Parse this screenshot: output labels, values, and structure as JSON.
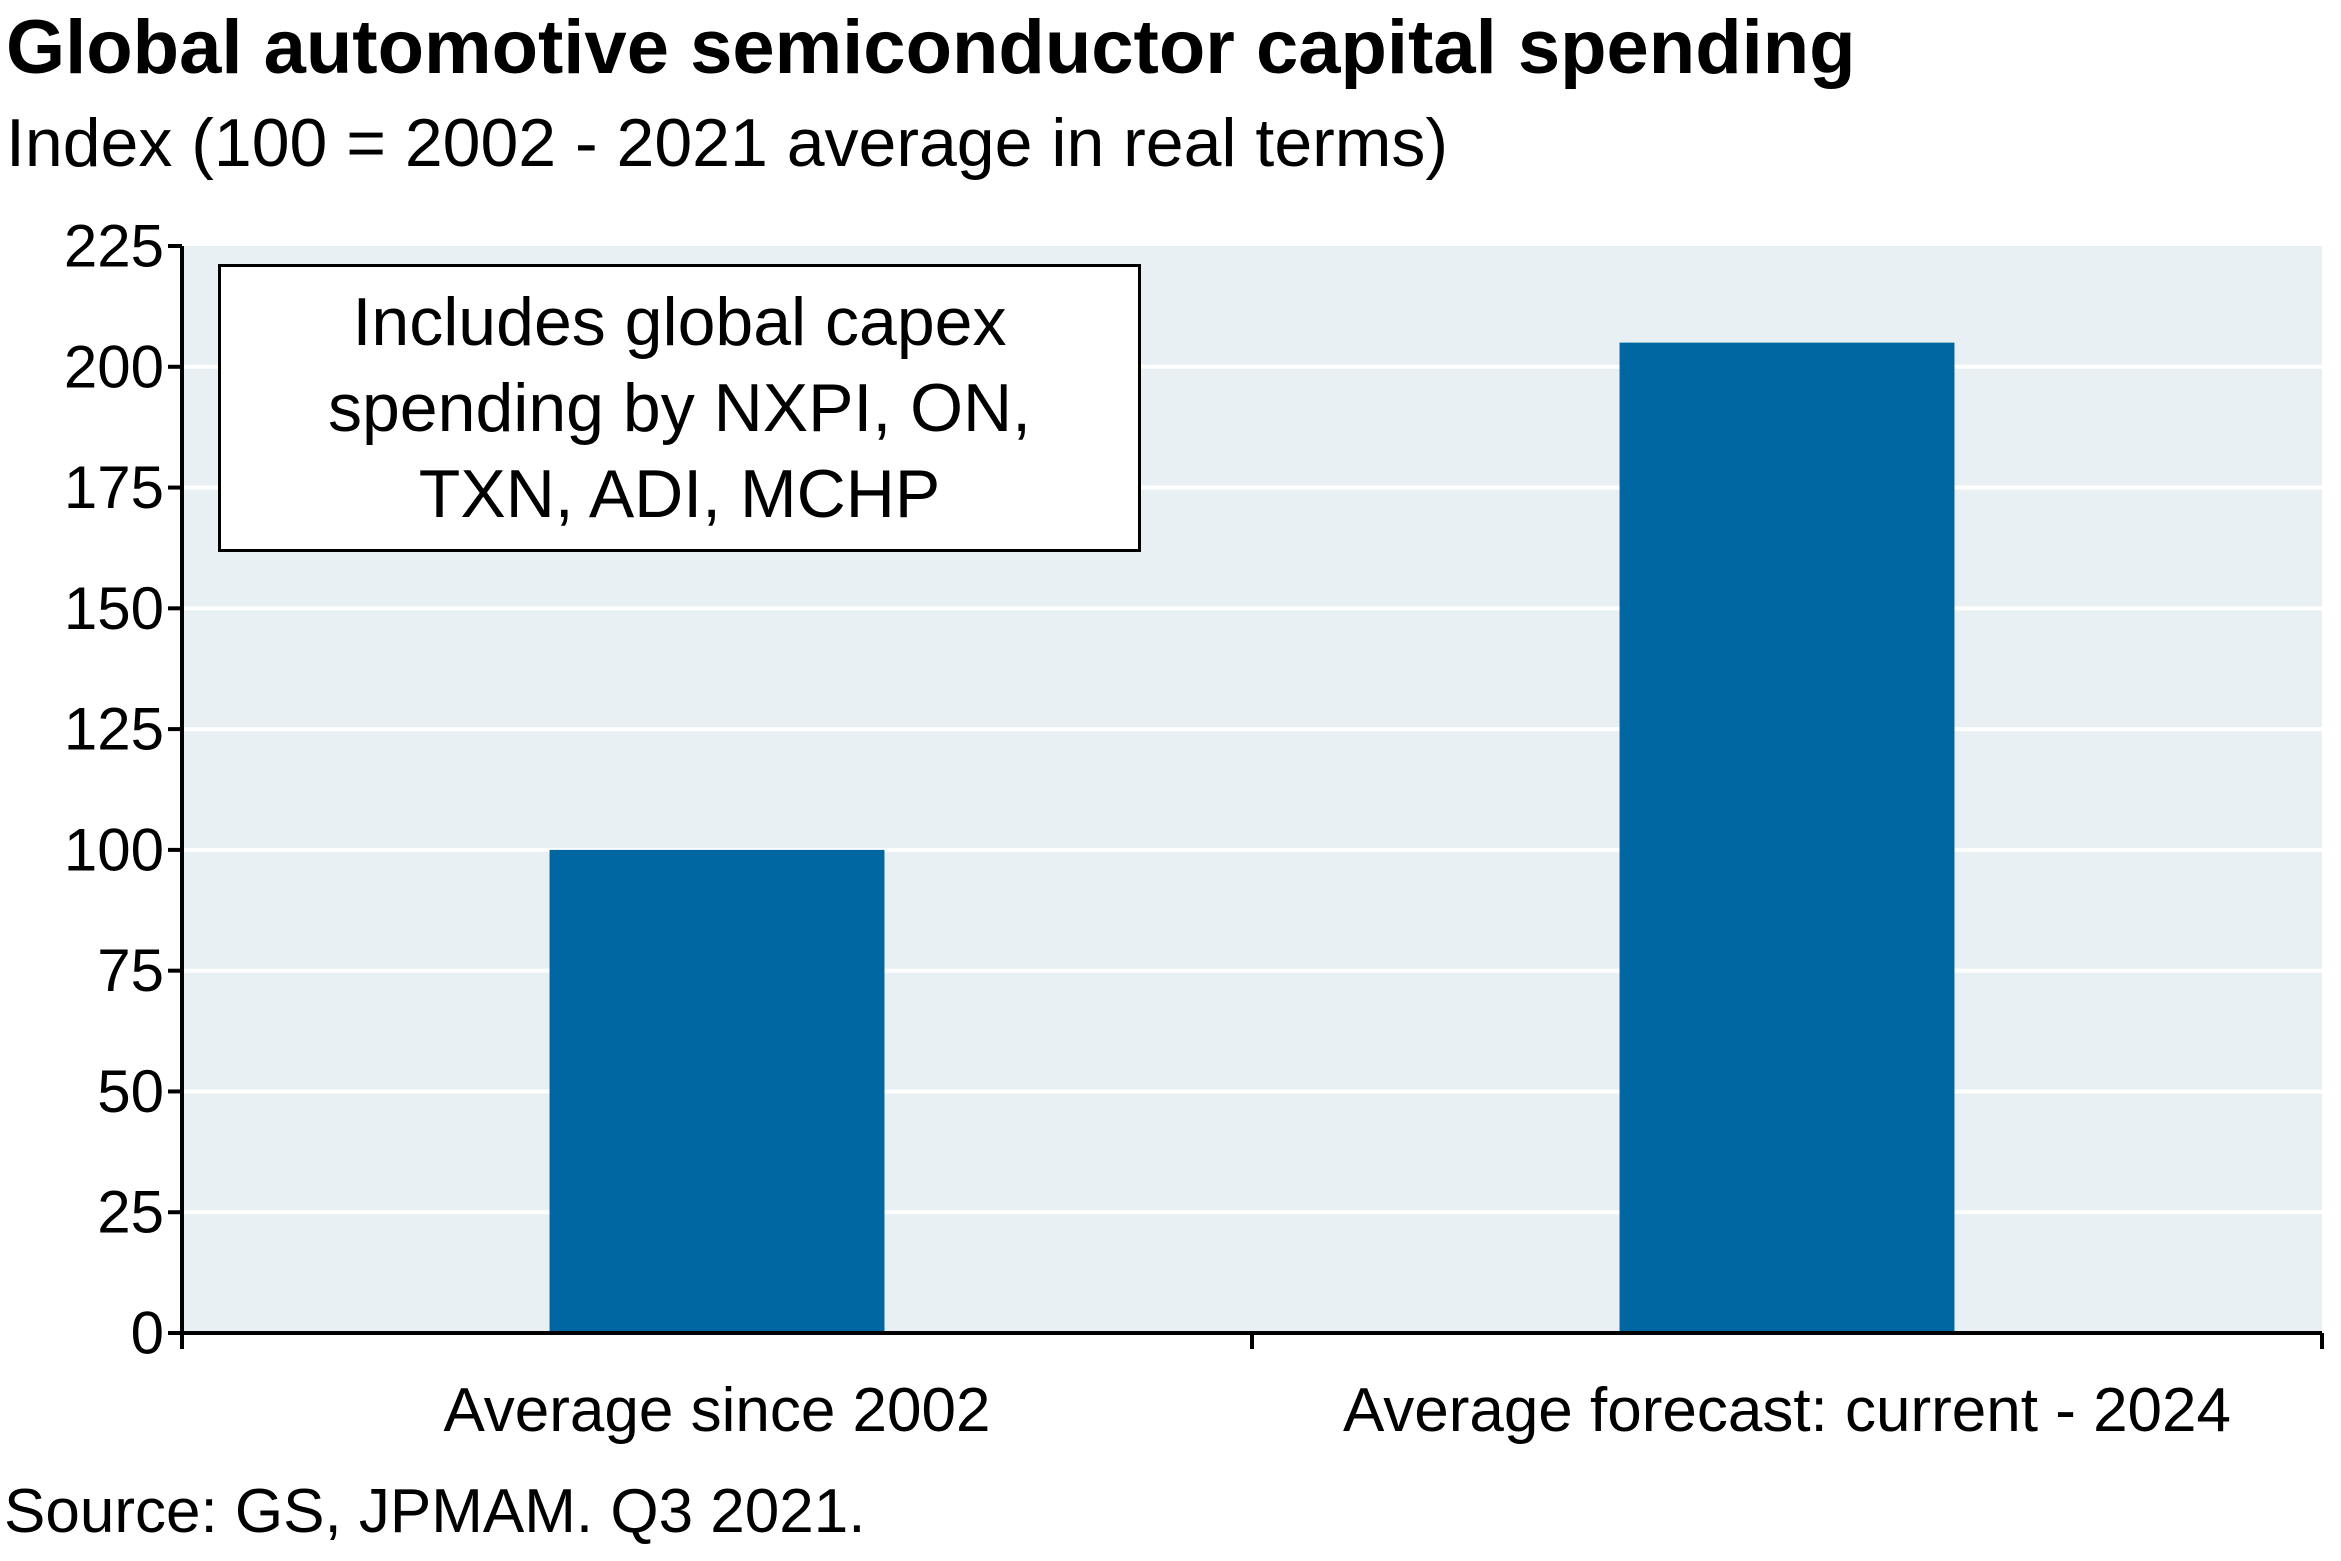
{
  "header": {
    "title": "Global automotive semiconductor capital spending",
    "subtitle": "Index (100 = 2002 - 2021 average in real terms)"
  },
  "note": {
    "lines": [
      "Includes global capex",
      "spending by NXPI, ON,",
      "TXN, ADI, MCHP"
    ]
  },
  "footer": {
    "source": "Source: GS, JPMAM. Q3 2021."
  },
  "chart_data": {
    "type": "bar",
    "categories": [
      "Average since 2002",
      "Average forecast: current - 2024"
    ],
    "values": [
      100,
      205
    ],
    "ylim": [
      0,
      225
    ],
    "yticks": [
      0,
      25,
      50,
      75,
      100,
      125,
      150,
      175,
      200,
      225
    ],
    "grid": true,
    "colors": {
      "bar": "#0066a1",
      "plot_background": "#e8f0f3",
      "gridline": "#ffffff",
      "axis": "#000000"
    }
  }
}
